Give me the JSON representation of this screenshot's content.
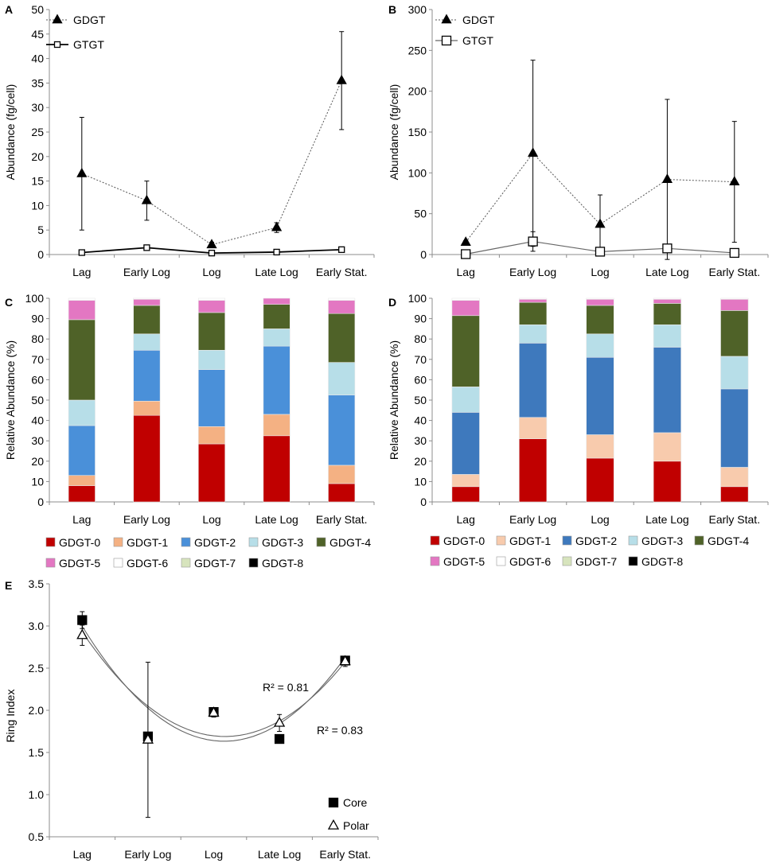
{
  "panels": {
    "a": "A",
    "b": "B",
    "c": "C",
    "d": "D",
    "e": "E"
  },
  "colors": {
    "GDGT-0": "#c00000",
    "GDGT-1": "#f4b183",
    "GDGT-2": "#4a90d9",
    "GDGT-3": "#b7dee8",
    "GDGT-4": "#4f6228",
    "GDGT-5": "#e377c2",
    "GDGT-6": "#ffffff",
    "GDGT-7": "#d7e4bd",
    "GDGT-8": "#000000"
  },
  "colors_d": {
    "GDGT-0": "#c00000",
    "GDGT-1": "#f8cbad",
    "GDGT-2": "#3e79bd",
    "GDGT-3": "#b7dee8",
    "GDGT-4": "#4f6228",
    "GDGT-5": "#e377c2",
    "GDGT-6": "#ffffff",
    "GDGT-7": "#d7e4bd",
    "GDGT-8": "#000000"
  },
  "chart_data": [
    {
      "id": "A",
      "type": "line",
      "categories": [
        "Lag",
        "Early Log",
        "Log",
        "Late Log",
        "Early Stat."
      ],
      "ylabel": "Abundance (fg/cell)",
      "ylim": [
        0,
        50
      ],
      "yticks": [
        0,
        5,
        10,
        15,
        20,
        25,
        30,
        35,
        40,
        45,
        50
      ],
      "legend": "top-left",
      "series": [
        {
          "name": "GDGT",
          "marker": "filled-triangle",
          "line": "dotted",
          "values": [
            16.5,
            11,
            2,
            5.5,
            35.5
          ],
          "err": [
            11.5,
            4,
            0.5,
            1,
            10
          ]
        },
        {
          "name": "GTGT",
          "marker": "open-square",
          "line": "solid",
          "values": [
            0.4,
            1.4,
            0.3,
            0.5,
            1
          ],
          "err": [
            0.1,
            0.2,
            0.1,
            0.1,
            0.1
          ]
        }
      ]
    },
    {
      "id": "B",
      "type": "line",
      "categories": [
        "Lag",
        "Early Log",
        "Log",
        "Late Log",
        "Early Stat."
      ],
      "ylabel": "Abundance (fg/cell)",
      "ylim": [
        0,
        300
      ],
      "yticks": [
        0,
        50,
        100,
        150,
        200,
        250,
        300
      ],
      "legend": "top-left",
      "series": [
        {
          "name": "GDGT",
          "marker": "filled-triangle",
          "line": "dotted",
          "values": [
            15,
            124,
            37,
            92,
            89
          ],
          "err": [
            2,
            114,
            36,
            98,
            74
          ]
        },
        {
          "name": "GTGT",
          "marker": "open-square",
          "line": "solid",
          "values": [
            0.5,
            16,
            3.5,
            7.5,
            2
          ],
          "err": [
            0.2,
            12,
            2,
            5,
            1
          ]
        }
      ]
    },
    {
      "id": "C",
      "type": "bar",
      "stacked": true,
      "categories": [
        "Lag",
        "Early Log",
        "Log",
        "Late Log",
        "Early Stat."
      ],
      "ylabel": "Relative Abundance (%)",
      "ylim": [
        0,
        100
      ],
      "yticks": [
        0,
        10,
        20,
        30,
        40,
        50,
        60,
        70,
        80,
        90,
        100
      ],
      "series_names": [
        "GDGT-0",
        "GDGT-1",
        "GDGT-2",
        "GDGT-3",
        "GDGT-4",
        "GDGT-5",
        "GDGT-6",
        "GDGT-7",
        "GDGT-8"
      ],
      "values": [
        [
          8,
          5,
          24.5,
          12.5,
          39.5,
          9.5,
          1,
          0,
          0
        ],
        [
          42.5,
          7,
          25,
          8,
          14,
          3,
          0.5,
          0,
          0
        ],
        [
          28.5,
          8.5,
          28,
          9.5,
          18.5,
          6,
          1,
          0,
          0
        ],
        [
          32.5,
          10.5,
          33.5,
          8.5,
          12,
          3,
          0,
          0,
          0
        ],
        [
          9,
          9,
          34.5,
          16,
          24,
          6.5,
          1,
          0,
          0
        ]
      ]
    },
    {
      "id": "D",
      "type": "bar",
      "stacked": true,
      "categories": [
        "Lag",
        "Early Log",
        "Log",
        "Late Log",
        "Early Stat."
      ],
      "ylabel": "Relative Abundance (%)",
      "ylim": [
        0,
        100
      ],
      "yticks": [
        0,
        10,
        20,
        30,
        40,
        50,
        60,
        70,
        80,
        90,
        100
      ],
      "series_names": [
        "GDGT-0",
        "GDGT-1",
        "GDGT-2",
        "GDGT-3",
        "GDGT-4",
        "GDGT-5",
        "GDGT-6",
        "GDGT-7",
        "GDGT-8"
      ],
      "values": [
        [
          7.5,
          6,
          30.5,
          12.5,
          35,
          7.5,
          1,
          0,
          0
        ],
        [
          31,
          10.5,
          36.5,
          9,
          11,
          1.5,
          0.5,
          0,
          0
        ],
        [
          21.5,
          11.5,
          38,
          11.5,
          14,
          3,
          0.5,
          0,
          0
        ],
        [
          20,
          14,
          42,
          11,
          10.5,
          2,
          0.5,
          0,
          0
        ],
        [
          7.5,
          9.5,
          38.5,
          16,
          22.5,
          5.5,
          0.5,
          0,
          0
        ]
      ]
    },
    {
      "id": "E",
      "type": "scatter",
      "categories": [
        "Lag",
        "Early Log",
        "Log",
        "Late Log",
        "Early Stat."
      ],
      "ylabel": "Ring Index",
      "ylim": [
        0.5,
        3.5
      ],
      "yticks": [
        "0.5",
        "1.0",
        "1.5",
        "2.0",
        "2.5",
        "3.0",
        "3.5"
      ],
      "legend": "bottom-right",
      "series": [
        {
          "name": "Core",
          "marker": "filled-square",
          "values": [
            3.07,
            1.69,
            1.98,
            1.66,
            2.59
          ],
          "err": [
            0.1,
            0,
            0.05,
            0,
            0.05
          ],
          "fit": [
            3.02,
            1.97,
            1.66,
            1.87,
            2.61
          ]
        },
        {
          "name": "Polar",
          "marker": "open-triangle",
          "values": [
            2.89,
            1.65,
            1.97,
            1.85,
            2.58
          ],
          "err": [
            0.12,
            0.92,
            0.05,
            0.1,
            0.06
          ],
          "fit": [
            2.94,
            2.02,
            1.72,
            1.87,
            2.57
          ]
        }
      ],
      "annotations": [
        "R² = 0.81",
        "R² = 0.83"
      ]
    }
  ]
}
